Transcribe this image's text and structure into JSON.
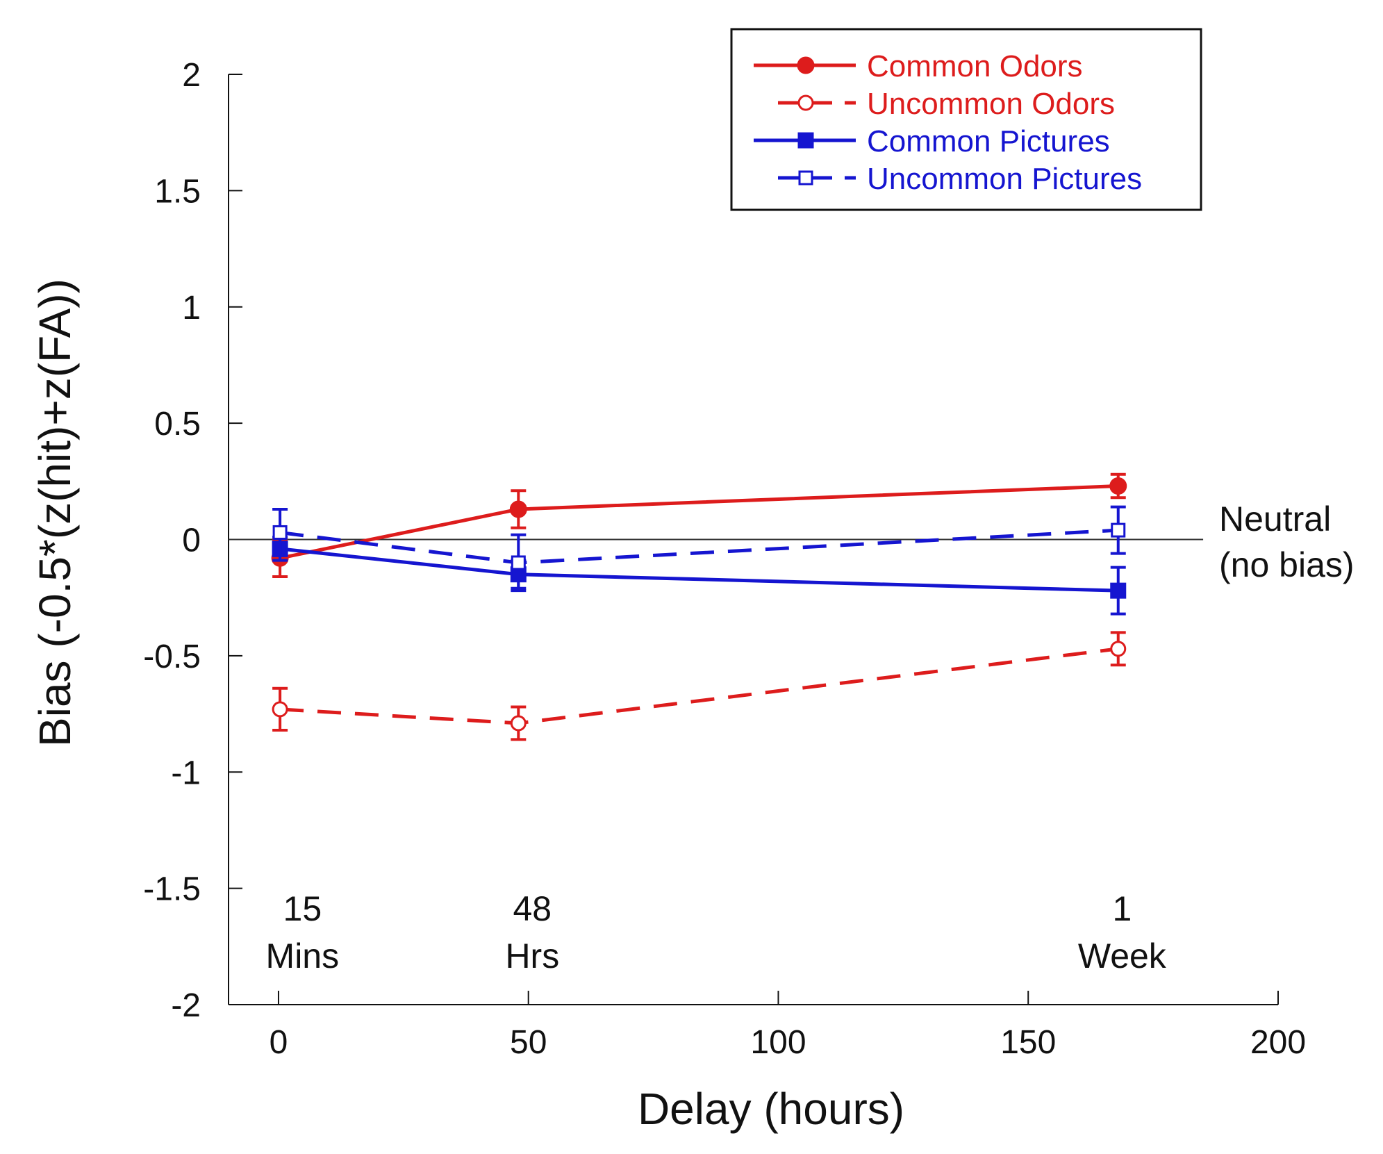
{
  "chart_data": {
    "type": "line",
    "xlabel": "Delay (hours)",
    "ylabel": "Bias (-0.5*(z(hit)+z(FA))",
    "xlim": [
      -10,
      200
    ],
    "ylim": [
      -2,
      2
    ],
    "xticks": [
      0,
      50,
      100,
      150,
      200
    ],
    "yticks": [
      2,
      1.5,
      1,
      0.5,
      0,
      -0.5,
      -1,
      -1.5,
      -2
    ],
    "ytick_labels": [
      "2",
      "1.5",
      "1",
      "0.5",
      "0",
      "-0.5",
      "-1",
      "-1.5",
      "-2"
    ],
    "grid": false,
    "legend_position": "top-right",
    "reference_line": {
      "y": 0,
      "x_end": 185,
      "label_lines": [
        "Neutral",
        "(no bias)"
      ]
    },
    "annotations": [
      {
        "x": 2,
        "lines": [
          "15",
          "Mins"
        ]
      },
      {
        "x": 48,
        "lines": [
          "48",
          "Hrs"
        ]
      },
      {
        "x": 166,
        "lines": [
          "1",
          "Week"
        ]
      }
    ],
    "series": [
      {
        "name": "Common Odors",
        "color": "#dd1c1c",
        "dash": "solid",
        "marker": "circle-filled",
        "x": [
          0.3,
          48,
          168
        ],
        "y": [
          -0.08,
          0.13,
          0.23
        ],
        "err": [
          0.08,
          0.08,
          0.05
        ]
      },
      {
        "name": "Uncommon Odors",
        "color": "#dd1c1c",
        "dash": "dashed",
        "marker": "circle-open",
        "x": [
          0.3,
          48,
          168
        ],
        "y": [
          -0.73,
          -0.79,
          -0.47
        ],
        "err": [
          0.09,
          0.07,
          0.07
        ]
      },
      {
        "name": "Common Pictures",
        "color": "#1515d0",
        "dash": "solid",
        "marker": "square-filled",
        "x": [
          0.3,
          48,
          168
        ],
        "y": [
          -0.04,
          -0.15,
          -0.22
        ],
        "err": [
          0.05,
          0.06,
          0.1
        ]
      },
      {
        "name": "Uncommon Pictures",
        "color": "#1515d0",
        "dash": "dashed",
        "marker": "square-open",
        "x": [
          0.3,
          48,
          168
        ],
        "y": [
          0.03,
          -0.1,
          0.04
        ],
        "err": [
          0.1,
          0.12,
          0.1
        ]
      }
    ]
  }
}
